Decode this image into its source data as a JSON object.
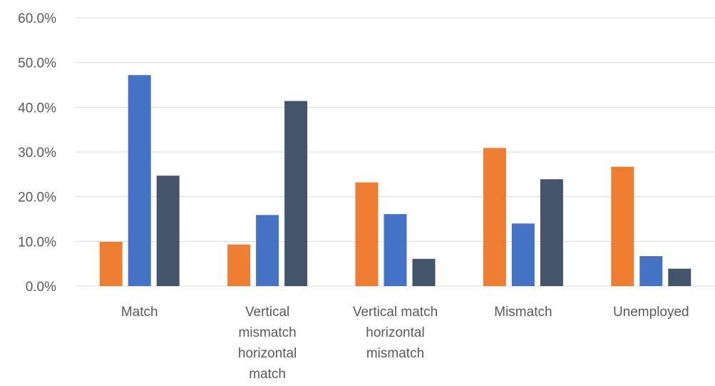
{
  "chart_data": {
    "type": "bar",
    "categories": [
      [
        "Match"
      ],
      [
        "Vertical",
        "mismatch",
        "horizontal",
        "match"
      ],
      [
        "Vertical match",
        "horizontal",
        "mismatch"
      ],
      [
        "Mismatch"
      ],
      [
        "Unemployed"
      ]
    ],
    "series": [
      {
        "color": "#ed7d31",
        "values": [
          9.9,
          9.3,
          23.2,
          30.9,
          26.7
        ]
      },
      {
        "color": "#4472c4",
        "values": [
          47.2,
          15.9,
          16.1,
          14.0,
          6.7
        ]
      },
      {
        "color": "#44546a",
        "values": [
          24.7,
          41.4,
          6.1,
          23.9,
          3.9
        ]
      }
    ],
    "ylim": [
      0,
      60
    ],
    "yticks": [
      "0.0%",
      "10.0%",
      "20.0%",
      "30.0%",
      "40.0%",
      "50.0%",
      "60.0%"
    ],
    "grid": true,
    "legend": "none"
  }
}
